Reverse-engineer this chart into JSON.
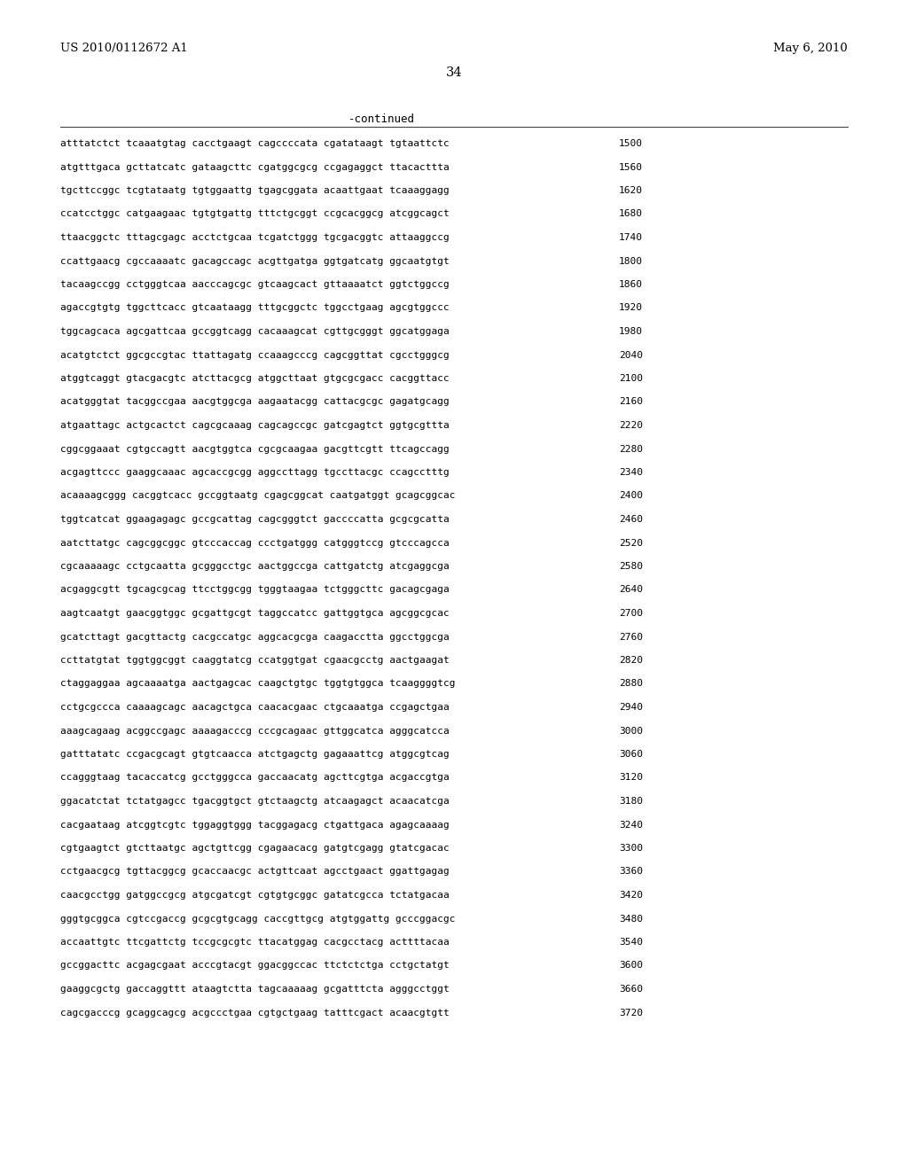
{
  "header_left": "US 2010/0112672 A1",
  "header_right": "May 6, 2010",
  "page_number": "34",
  "continued_label": "-continued",
  "background_color": "#ffffff",
  "text_color": "#000000",
  "sequence_lines": [
    [
      "atttatctct tcaaatgtag cacctgaagt cagccccata cgatataagt tgtaattctc",
      "1500"
    ],
    [
      "atgtttgaca gcttatcatc gataagcttc cgatggcgcg ccgagaggct ttacacttta",
      "1560"
    ],
    [
      "tgcttccggc tcgtataatg tgtggaattg tgagcggata acaattgaat tcaaaggagg",
      "1620"
    ],
    [
      "ccatcctggc catgaagaac tgtgtgattg tttctgcggt ccgcacggcg atcggcagct",
      "1680"
    ],
    [
      "ttaacggctc tttagcgagc acctctgcaa tcgatctggg tgcgacggtc attaaggccg",
      "1740"
    ],
    [
      "ccattgaacg cgccaaaatc gacagccagc acgttgatga ggtgatcatg ggcaatgtgt",
      "1800"
    ],
    [
      "tacaagccgg cctgggtcaa aacccagcgc gtcaagcact gttaaaatct ggtctggccg",
      "1860"
    ],
    [
      "agaccgtgtg tggcttcacc gtcaataagg tttgcggctc tggcctgaag agcgtggccc",
      "1920"
    ],
    [
      "tggcagcaca agcgattcaa gccggtcagg cacaaagcat cgttgcgggt ggcatggaga",
      "1980"
    ],
    [
      "acatgtctct ggcgccgtac ttattagatg ccaaagcccg cagcggttat cgcctgggcg",
      "2040"
    ],
    [
      "atggtcaggt gtacgacgtc atcttacgcg atggcttaat gtgcgcgacc cacggttacc",
      "2100"
    ],
    [
      "acatgggtat tacggccgaa aacgtggcga aagaatacgg cattacgcgc gagatgcagg",
      "2160"
    ],
    [
      "atgaattagc actgcactct cagcgcaaag cagcagccgc gatcgagtct ggtgcgttta",
      "2220"
    ],
    [
      "cggcggaaat cgtgccagtt aacgtggtca cgcgcaagaa gacgttcgtt ttcagccagg",
      "2280"
    ],
    [
      "acgagttccc gaaggcaaac agcaccgcgg aggccttagg tgccttacgc ccagcctttg",
      "2340"
    ],
    [
      "acaaaagcggg cacggtcacc gccggtaatg cgagcggcat caatgatggt gcagcggcac",
      "2400"
    ],
    [
      "tggtcatcat ggaagagagc gccgcattag cagcgggtct gaccccatta gcgcgcatta",
      "2460"
    ],
    [
      "aatcttatgc cagcggcggc gtcccaccag ccctgatggg catgggtccg gtcccagcca",
      "2520"
    ],
    [
      "cgcaaaaagc cctgcaatta gcgggcctgc aactggccga cattgatctg atcgaggcga",
      "2580"
    ],
    [
      "acgaggcgtt tgcagcgcag ttcctggcgg tgggtaagaa tctgggcttc gacagcgaga",
      "2640"
    ],
    [
      "aagtcaatgt gaacggtggc gcgattgcgt taggccatcc gattggtgca agcggcgcac",
      "2700"
    ],
    [
      "gcatcttagt gacgttactg cacgccatgc aggcacgcga caagacctta ggcctggcga",
      "2760"
    ],
    [
      "ccttatgtat tggtggcggt caaggtatcg ccatggtgat cgaacgcctg aactgaagat",
      "2820"
    ],
    [
      "ctaggaggaa agcaaaatga aactgagcac caagctgtgc tggtgtggca tcaaggggtcg",
      "2880"
    ],
    [
      "cctgcgccca caaaagcagc aacagctgca caacacgaac ctgcaaatga ccgagctgaa",
      "2940"
    ],
    [
      "aaagcagaag acggccgagc aaaagacccg cccgcagaac gttggcatca agggcatcca",
      "3000"
    ],
    [
      "gatttatatc ccgacgcagt gtgtcaacca atctgagctg gagaaattcg atggcgtcag",
      "3060"
    ],
    [
      "ccagggtaag tacaccatcg gcctgggcca gaccaacatg agcttcgtga acgaccgtga",
      "3120"
    ],
    [
      "ggacatctat tctatgagcc tgacggtgct gtctaagctg atcaagagct acaacatcga",
      "3180"
    ],
    [
      "cacgaataag atcggtcgtc tggaggtggg tacggagacg ctgattgaca agagcaaaag",
      "3240"
    ],
    [
      "cgtgaagtct gtcttaatgc agctgttcgg cgagaacacg gatgtcgagg gtatcgacac",
      "3300"
    ],
    [
      "cctgaacgcg tgttacggcg gcaccaacgc actgttcaat agcctgaact ggattgagag",
      "3360"
    ],
    [
      "caacgcctgg gatggccgcg atgcgatcgt cgtgtgcggc gatatcgcca tctatgacaa",
      "3420"
    ],
    [
      "gggtgcggca cgtccgaccg gcgcgtgcagg caccgttgcg atgtggattg gcccggacgc",
      "3480"
    ],
    [
      "accaattgtc ttcgattctg tccgcgcgtc ttacatggag cacgcctacg acttttacaa",
      "3540"
    ],
    [
      "gccggacttc acgagcgaat acccgtacgt ggacggccac ttctctctga cctgctatgt",
      "3600"
    ],
    [
      "gaaggcgctg gaccaggttt ataagtctta tagcaaaaag gcgatttcta agggcctggt",
      "3660"
    ],
    [
      "cagcgacccg gcaggcagcg acgccctgaa cgtgctgaag tatttcgact acaacgtgtt",
      "3720"
    ]
  ]
}
